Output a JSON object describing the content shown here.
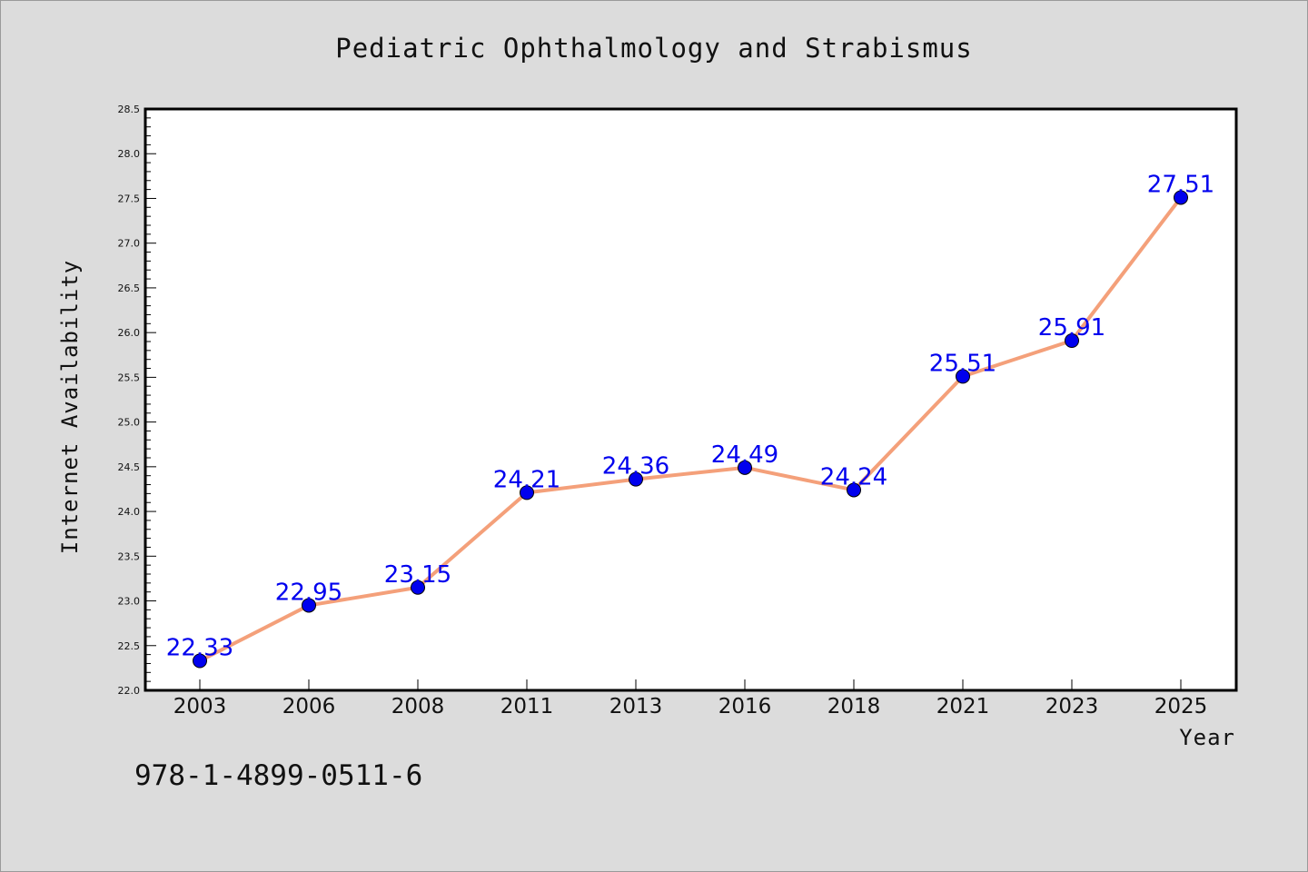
{
  "chart_data": {
    "type": "line",
    "title": "Pediatric Ophthalmology and Strabismus",
    "xlabel": "Year",
    "ylabel": "Internet Availability",
    "categories": [
      "2003",
      "2006",
      "2008",
      "2011",
      "2013",
      "2016",
      "2018",
      "2021",
      "2023",
      "2025"
    ],
    "series": [
      {
        "values": [
          22.33,
          22.95,
          23.15,
          24.21,
          24.36,
          24.49,
          24.24,
          25.51,
          25.91,
          27.51
        ],
        "labels": [
          "22.33",
          "22.95",
          "23.15",
          "24.21",
          "24.36",
          "24.49",
          "24.24",
          "25.51",
          "25.91",
          "27.51"
        ],
        "line_color": "#f4a07a",
        "marker_color": "#0000ee"
      }
    ],
    "ylim": [
      22.0,
      28.5
    ],
    "yticks": [
      "22.0",
      "22.5",
      "23.0",
      "23.5",
      "24.0",
      "24.5",
      "25.0",
      "25.5",
      "26.0",
      "26.5",
      "27.0",
      "27.5",
      "28.0",
      "28.5"
    ],
    "grid": false,
    "legend": "none"
  },
  "footer": {
    "isbn": "978-1-4899-0511-6"
  },
  "colors": {
    "background": "#dcdcdc",
    "plot_background": "#ffffff"
  }
}
